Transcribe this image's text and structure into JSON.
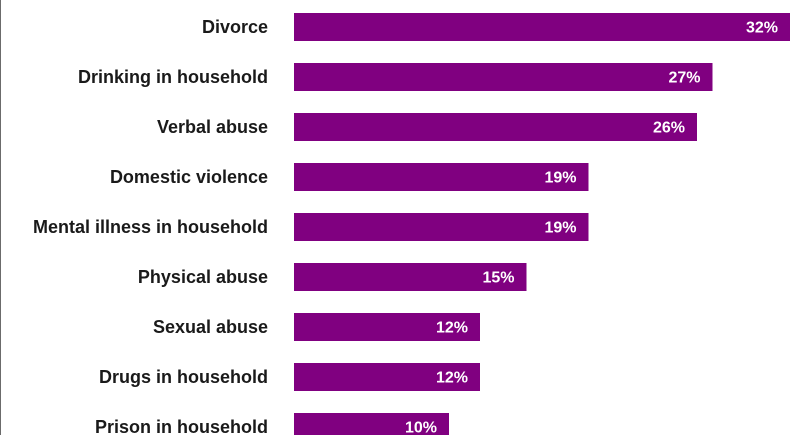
{
  "chart_data": {
    "type": "bar",
    "orientation": "horizontal",
    "categories": [
      "Divorce",
      "Drinking in household",
      "Verbal abuse",
      "Domestic violence",
      "Mental illness in household",
      "Physical abuse",
      "Sexual abuse",
      "Drugs in household",
      "Prison in household"
    ],
    "values": [
      32,
      27,
      26,
      19,
      19,
      15,
      12,
      12,
      10
    ],
    "value_labels": [
      "32%",
      "27%",
      "26%",
      "19%",
      "19%",
      "15%",
      "12%",
      "12%",
      "10%"
    ],
    "xlim": [
      0,
      32
    ],
    "bar_color": "#800080",
    "label_color": "#ffffff",
    "grid": false,
    "legend": "none"
  }
}
